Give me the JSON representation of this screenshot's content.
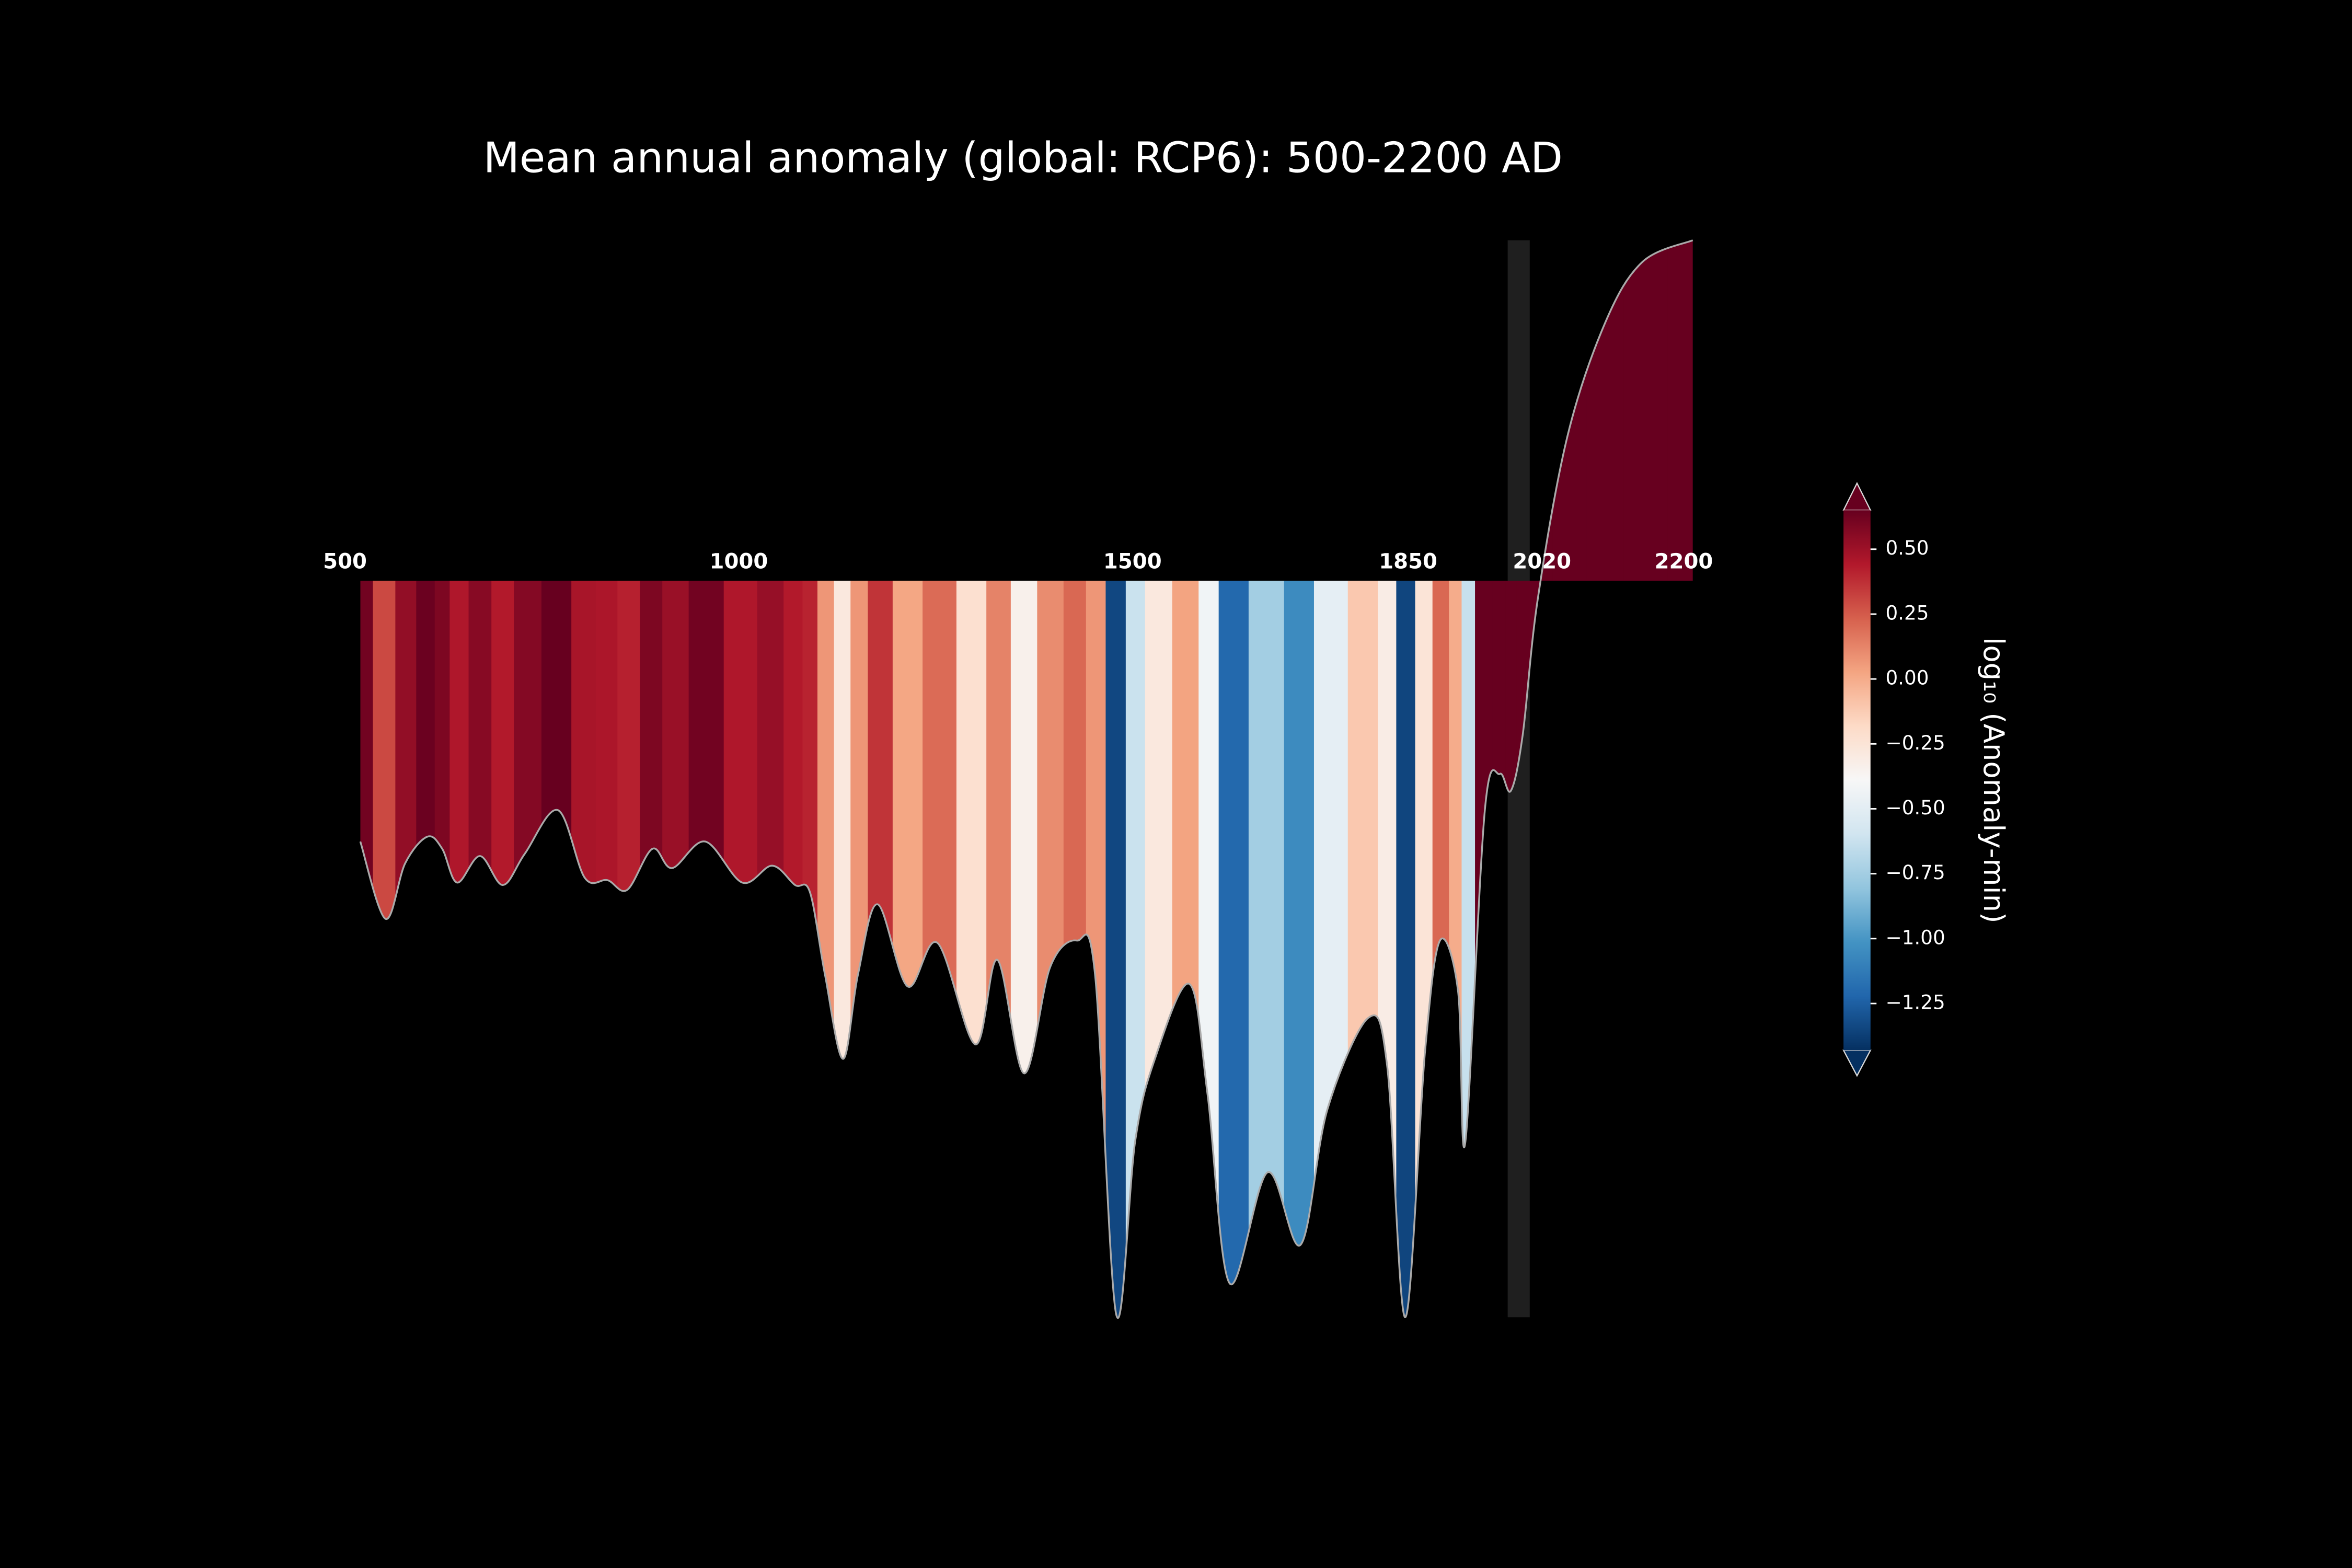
{
  "chart_data": {
    "type": "stripes",
    "title": "Mean annual anomaly (global: RCP6): 500-2200 AD",
    "x": [
      508,
      540,
      565,
      593,
      612,
      631,
      660,
      689,
      717,
      759,
      793,
      822,
      847,
      879,
      904,
      946,
      993,
      1031,
      1060,
      1079,
      1098,
      1121,
      1140,
      1165,
      1203,
      1241,
      1289,
      1317,
      1351,
      1384,
      1418,
      1441,
      1468,
      1492,
      1517,
      1561,
      1584,
      1612,
      1660,
      1702,
      1736,
      1788,
      1812,
      1835,
      1860,
      1879,
      1902,
      1911,
      1936,
      1955,
      1969,
      1984,
      2003,
      2041,
      2089,
      2136,
      2200
    ],
    "values": [
      0.62,
      0.3,
      0.53,
      0.64,
      0.59,
      0.45,
      0.56,
      0.44,
      0.57,
      0.75,
      0.47,
      0.46,
      0.42,
      0.59,
      0.51,
      0.62,
      0.45,
      0.52,
      0.44,
      0.41,
      0.07,
      -0.28,
      0.07,
      0.36,
      0.02,
      0.2,
      -0.22,
      0.13,
      -0.34,
      0.1,
      0.21,
      0.07,
      -1.34,
      -0.62,
      -0.28,
      0.03,
      -0.43,
      -1.21,
      -0.75,
      -1.05,
      -0.49,
      -0.11,
      -0.31,
      -1.35,
      -0.25,
      0.21,
      0.0,
      -0.63,
      0.75,
      0.9,
      0.83,
      1.06,
      1.62,
      2.3,
      2.77,
      3.02,
      3.11
    ],
    "xlim": [
      500,
      2200
    ],
    "xticks": [
      500,
      1000,
      1500,
      1850,
      2020,
      2200
    ],
    "ylim": [
      -1.35,
      3.11
    ],
    "fill_to": 1.7,
    "highlight_span": [
      1965,
      1993
    ],
    "colormap": "RdBu_r",
    "clim": [
      -1.43,
      0.65
    ],
    "extend": "both",
    "cticks": [
      {
        "value": 0.5,
        "label": "0.50"
      },
      {
        "value": 0.25,
        "label": "0.25"
      },
      {
        "value": 0,
        "label": "0.00"
      },
      {
        "value": -0.25,
        "label": "−0.25"
      },
      {
        "value": -0.5,
        "label": "−0.50"
      },
      {
        "value": -0.75,
        "label": "−0.75"
      },
      {
        "value": -1,
        "label": "−1.00"
      },
      {
        "value": -1.25,
        "label": "−1.25"
      }
    ],
    "colorbar_label": "log₁₀ (Anomaly-min)"
  }
}
